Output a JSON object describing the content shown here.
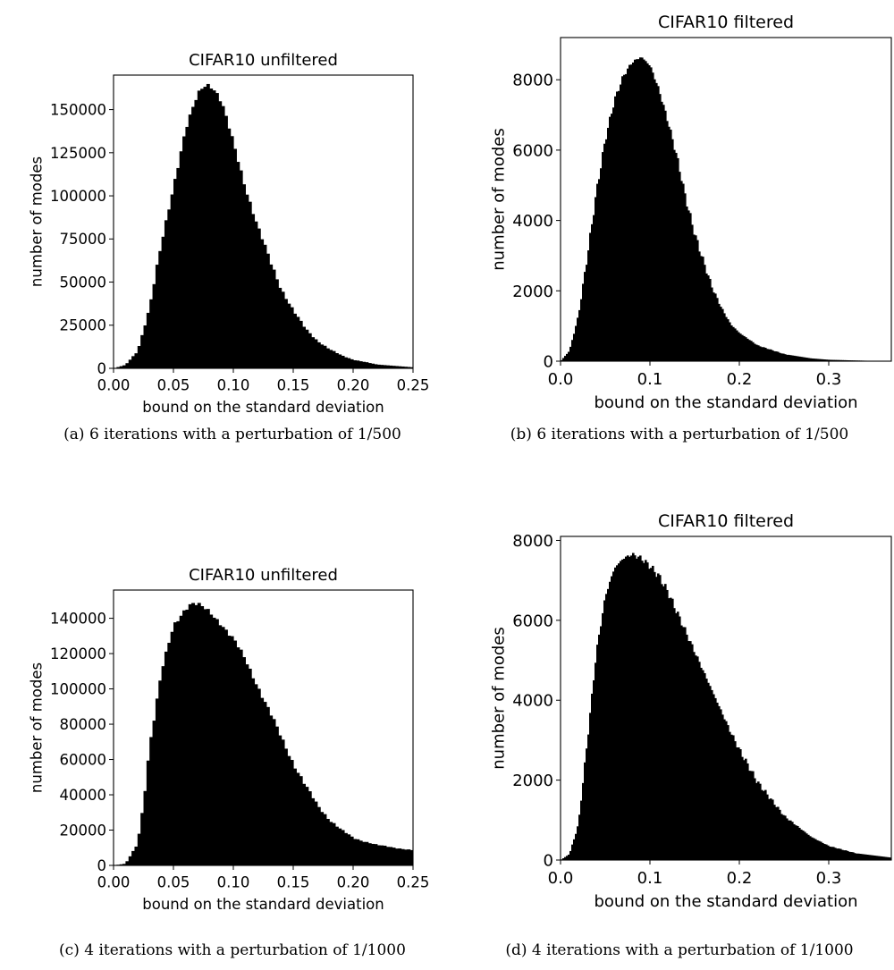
{
  "chart_data": [
    {
      "type": "bar",
      "title": "CIFAR10 unfiltered",
      "xlabel": "bound on the standard deviation",
      "ylabel": "number of modes",
      "xlim": [
        0.0,
        0.25
      ],
      "ylim": [
        0,
        170000
      ],
      "xticks": [
        "0.00",
        "0.05",
        "0.10",
        "0.15",
        "0.20",
        "0.25"
      ],
      "yticks": [
        "0",
        "25000",
        "50000",
        "75000",
        "100000",
        "125000",
        "150000"
      ],
      "bin_width": 0.0025,
      "curve": [
        [
          0.0,
          0
        ],
        [
          0.01,
          2000
        ],
        [
          0.02,
          10000
        ],
        [
          0.03,
          35000
        ],
        [
          0.04,
          72000
        ],
        [
          0.05,
          106000
        ],
        [
          0.06,
          138000
        ],
        [
          0.07,
          158000
        ],
        [
          0.075,
          164000
        ],
        [
          0.08,
          165000
        ],
        [
          0.085,
          161000
        ],
        [
          0.09,
          154000
        ],
        [
          0.1,
          130000
        ],
        [
          0.11,
          105000
        ],
        [
          0.12,
          82000
        ],
        [
          0.13,
          63000
        ],
        [
          0.14,
          46000
        ],
        [
          0.15,
          33000
        ],
        [
          0.16,
          23000
        ],
        [
          0.17,
          16000
        ],
        [
          0.18,
          11000
        ],
        [
          0.19,
          7500
        ],
        [
          0.2,
          5000
        ],
        [
          0.22,
          2200
        ],
        [
          0.25,
          600
        ]
      ],
      "caption": "(a) 6 iterations with a perturbation of 1/500"
    },
    {
      "type": "bar",
      "title": "CIFAR10 filtered",
      "xlabel": "bound on the standard deviation",
      "ylabel": "number of modes",
      "xlim": [
        0.0,
        0.37
      ],
      "ylim": [
        0,
        9200
      ],
      "xticks": [
        "0.0",
        "0.1",
        "0.2",
        "0.3"
      ],
      "yticks": [
        "0",
        "2000",
        "4000",
        "6000",
        "8000"
      ],
      "bin_width": 0.002,
      "curve": [
        [
          0.0,
          0
        ],
        [
          0.01,
          300
        ],
        [
          0.02,
          1300
        ],
        [
          0.03,
          3000
        ],
        [
          0.04,
          4800
        ],
        [
          0.05,
          6300
        ],
        [
          0.06,
          7400
        ],
        [
          0.07,
          8100
        ],
        [
          0.08,
          8500
        ],
        [
          0.09,
          8650
        ],
        [
          0.1,
          8400
        ],
        [
          0.11,
          7700
        ],
        [
          0.12,
          6800
        ],
        [
          0.13,
          5800
        ],
        [
          0.14,
          4600
        ],
        [
          0.15,
          3600
        ],
        [
          0.16,
          2800
        ],
        [
          0.17,
          2050
        ],
        [
          0.18,
          1500
        ],
        [
          0.19,
          1050
        ],
        [
          0.2,
          800
        ],
        [
          0.22,
          450
        ],
        [
          0.25,
          200
        ],
        [
          0.28,
          80
        ],
        [
          0.3,
          40
        ],
        [
          0.33,
          20
        ],
        [
          0.35,
          8
        ]
      ],
      "caption": "(b) 6 iterations with a perturbation of 1/500"
    },
    {
      "type": "bar",
      "title": "CIFAR10 unfiltered",
      "xlabel": "bound on the standard deviation",
      "ylabel": "number of modes",
      "xlim": [
        0.0,
        0.25
      ],
      "ylim": [
        0,
        156000
      ],
      "xticks": [
        "0.00",
        "0.05",
        "0.10",
        "0.15",
        "0.20",
        "0.25"
      ],
      "yticks": [
        "0",
        "20000",
        "40000",
        "60000",
        "80000",
        "100000",
        "120000",
        "140000"
      ],
      "bin_width": 0.0025,
      "curve": [
        [
          0.0,
          0
        ],
        [
          0.01,
          1000
        ],
        [
          0.02,
          12000
        ],
        [
          0.025,
          35000
        ],
        [
          0.03,
          68000
        ],
        [
          0.04,
          110000
        ],
        [
          0.05,
          135000
        ],
        [
          0.06,
          146000
        ],
        [
          0.065,
          149000
        ],
        [
          0.07,
          148000
        ],
        [
          0.08,
          143000
        ],
        [
          0.09,
          137000
        ],
        [
          0.1,
          128000
        ],
        [
          0.11,
          116000
        ],
        [
          0.12,
          102000
        ],
        [
          0.13,
          87000
        ],
        [
          0.14,
          72000
        ],
        [
          0.15,
          58000
        ],
        [
          0.16,
          45000
        ],
        [
          0.17,
          34000
        ],
        [
          0.18,
          26000
        ],
        [
          0.19,
          20000
        ],
        [
          0.2,
          15500
        ],
        [
          0.22,
          11500
        ],
        [
          0.25,
          8500
        ]
      ],
      "caption": "(c) 4 iterations with a perturbation of 1/1000"
    },
    {
      "type": "bar",
      "title": "CIFAR10 filtered",
      "xlabel": "bound on the standard deviation",
      "ylabel": "number of modes",
      "xlim": [
        0.0,
        0.37
      ],
      "ylim": [
        0,
        8100
      ],
      "xticks": [
        "0.0",
        "0.1",
        "0.2",
        "0.3"
      ],
      "yticks": [
        "0",
        "2000",
        "4000",
        "6000",
        "8000"
      ],
      "bin_width": 0.002,
      "curve": [
        [
          0.0,
          0
        ],
        [
          0.01,
          150
        ],
        [
          0.02,
          900
        ],
        [
          0.03,
          3000
        ],
        [
          0.04,
          5200
        ],
        [
          0.05,
          6600
        ],
        [
          0.06,
          7300
        ],
        [
          0.07,
          7550
        ],
        [
          0.08,
          7650
        ],
        [
          0.09,
          7550
        ],
        [
          0.1,
          7350
        ],
        [
          0.11,
          7100
        ],
        [
          0.12,
          6700
        ],
        [
          0.13,
          6200
        ],
        [
          0.14,
          5700
        ],
        [
          0.15,
          5200
        ],
        [
          0.16,
          4700
        ],
        [
          0.17,
          4200
        ],
        [
          0.18,
          3700
        ],
        [
          0.19,
          3200
        ],
        [
          0.2,
          2750
        ],
        [
          0.22,
          1950
        ],
        [
          0.25,
          1100
        ],
        [
          0.28,
          580
        ],
        [
          0.3,
          350
        ],
        [
          0.33,
          170
        ],
        [
          0.37,
          60
        ]
      ],
      "caption": "(d) 4 iterations with a perturbation of 1/1000"
    }
  ]
}
